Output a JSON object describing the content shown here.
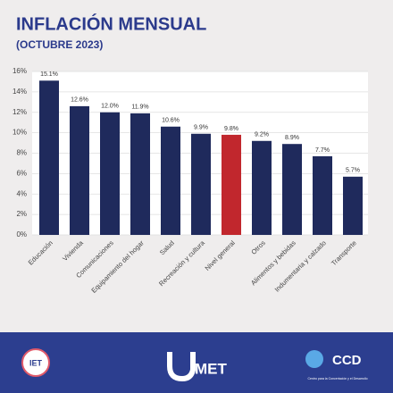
{
  "chart_data": {
    "type": "bar",
    "title": "INFLACIÓN MENSUAL",
    "subtitle": "(OCTUBRE 2023)",
    "categories": [
      "Educación",
      "Vivienda",
      "Comunicaciones",
      "Equipamiento del hogar",
      "Salud",
      "Recreación y cultura",
      "Nivel general",
      "Otros",
      "Alimentos y bebidas",
      "Indumentaria y calzado",
      "Transporte"
    ],
    "values": [
      15.1,
      12.6,
      12.0,
      11.9,
      10.6,
      9.9,
      9.8,
      9.2,
      8.9,
      7.7,
      5.7
    ],
    "value_labels": [
      "15.1%",
      "12.6%",
      "12.0%",
      "11.9%",
      "10.6%",
      "9.9%",
      "9.8%",
      "9.2%",
      "8.9%",
      "7.7%",
      "5.7%"
    ],
    "colors": [
      "#1f2a5c",
      "#1f2a5c",
      "#1f2a5c",
      "#1f2a5c",
      "#1f2a5c",
      "#1f2a5c",
      "#c1272d",
      "#1f2a5c",
      "#1f2a5c",
      "#1f2a5c",
      "#1f2a5c"
    ],
    "ylim": [
      0,
      16
    ],
    "yticks": [
      {
        "value": 0,
        "label": "0%"
      },
      {
        "value": 2,
        "label": "2%"
      },
      {
        "value": 4,
        "label": "4%"
      },
      {
        "value": 6,
        "label": "6%"
      },
      {
        "value": 8,
        "label": "8%"
      },
      {
        "value": 10,
        "label": "10%"
      },
      {
        "value": 12,
        "label": "12%"
      },
      {
        "value": 14,
        "label": "14%"
      },
      {
        "value": 16,
        "label": "16%"
      }
    ],
    "grid": true
  },
  "footer": {
    "logos": [
      "IET",
      "MET",
      "CCD"
    ],
    "ccd_caption": "Centro para la Concertación y el Desarrollo"
  }
}
